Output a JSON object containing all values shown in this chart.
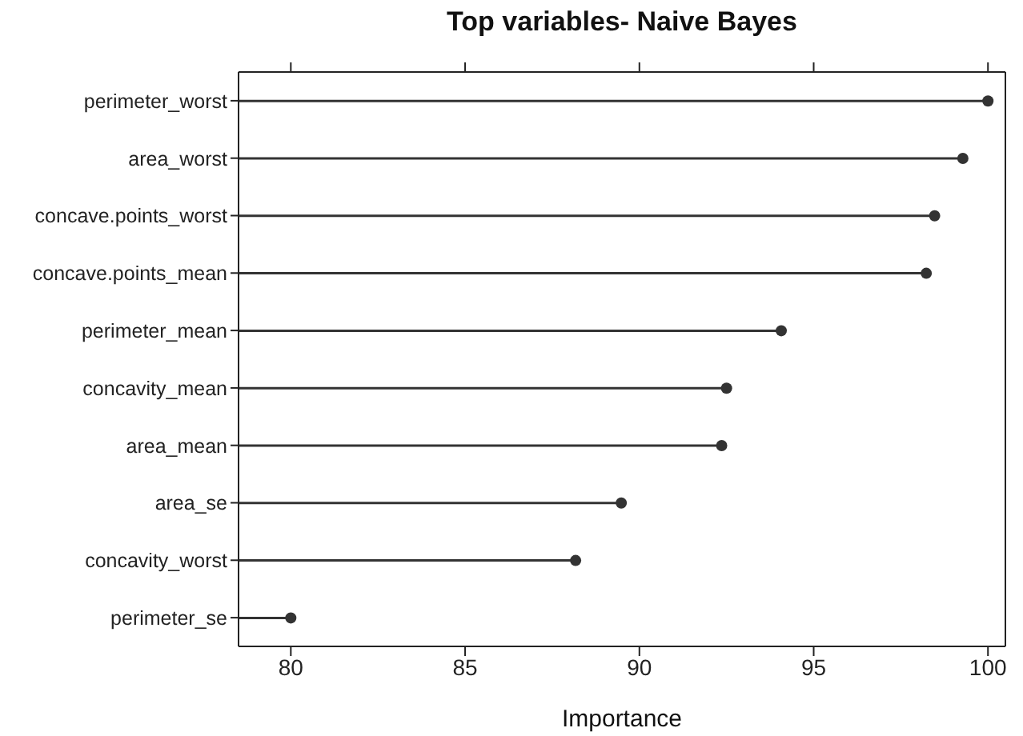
{
  "chart_data": {
    "type": "lollipop",
    "orientation": "horizontal",
    "title": "Top variables- Naive Bayes",
    "xlabel": "Importance",
    "categories": [
      "perimeter_worst",
      "area_worst",
      "concave.points_worst",
      "concave.points_mean",
      "perimeter_mean",
      "concavity_mean",
      "area_mean",
      "area_se",
      "concavity_worst",
      "perimeter_se"
    ],
    "values": [
      100,
      99.28,
      98.47,
      98.23,
      94.07,
      92.5,
      92.36,
      89.48,
      88.17,
      80
    ],
    "color": "#333333",
    "marker": "circle",
    "xlim": [
      78.5,
      100.5
    ],
    "xticks": [
      80,
      85,
      90,
      95,
      100
    ],
    "grid": false
  }
}
